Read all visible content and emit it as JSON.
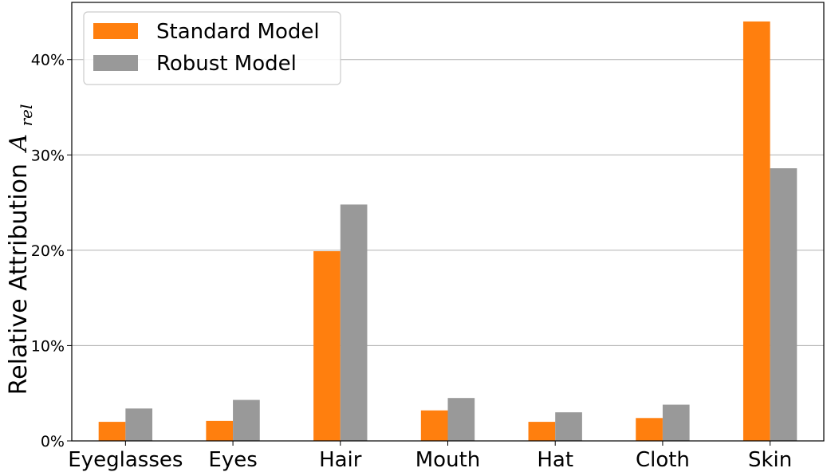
{
  "chart_data": {
    "type": "bar",
    "categories": [
      "Eyeglasses",
      "Eyes",
      "Hair",
      "Mouth",
      "Hat",
      "Cloth",
      "Skin"
    ],
    "series": [
      {
        "name": "Standard Model",
        "color": "#ff7f0e",
        "values": [
          2.0,
          2.1,
          19.9,
          3.2,
          2.0,
          2.4,
          44.0
        ]
      },
      {
        "name": "Robust Model",
        "color": "#999999",
        "values": [
          3.4,
          4.3,
          24.8,
          4.5,
          3.0,
          3.8,
          28.6
        ]
      }
    ],
    "ylabel": "Relative Attribution",
    "ylabel_symbol": "A",
    "ylabel_subscript": "rel",
    "ylim": [
      0,
      46
    ],
    "yticks": [
      0,
      10,
      20,
      30,
      40
    ],
    "ytick_labels": [
      "0%",
      "10%",
      "20%",
      "30%",
      "40%"
    ],
    "grid": "horizontal",
    "legend_position": "top-left"
  }
}
